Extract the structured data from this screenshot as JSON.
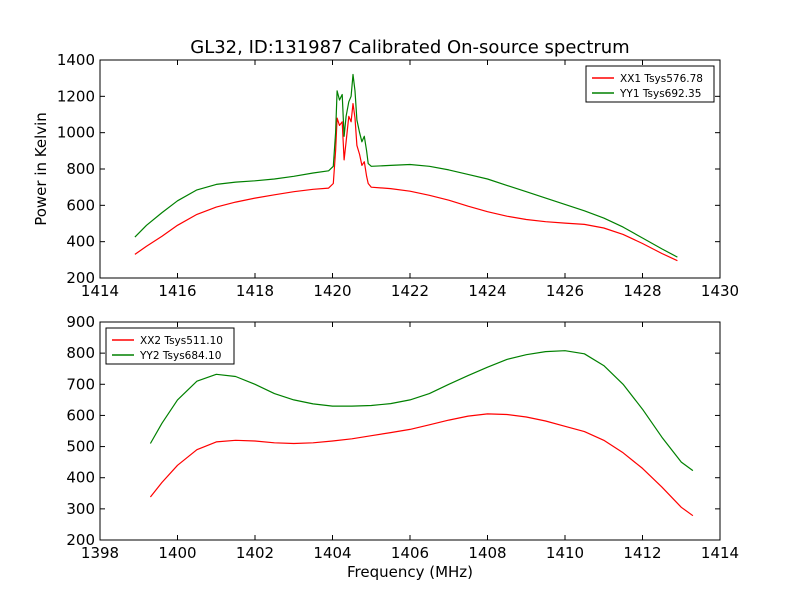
{
  "figure": {
    "title": "GL32, ID:131987 Calibrated On-source spectrum"
  },
  "colors": {
    "xx": "#ff0000",
    "yy": "#008000",
    "axes": "#000000",
    "background": "#ffffff"
  },
  "chart_data": [
    {
      "type": "line",
      "title": "GL32, ID:131987 Calibrated On-source spectrum",
      "xlabel": "",
      "ylabel": "Power in Kelvin",
      "xlim": [
        1414,
        1430
      ],
      "ylim": [
        200,
        1400
      ],
      "xticks": [
        "1414",
        "1416",
        "1418",
        "1420",
        "1422",
        "1424",
        "1426",
        "1428",
        "1430"
      ],
      "yticks": [
        "200",
        "400",
        "600",
        "800",
        "1000",
        "1200",
        "1400"
      ],
      "grid": false,
      "legend_position": "top-right",
      "series": [
        {
          "name": "XX1 Tsys576.78",
          "color": "#ff0000",
          "x": [
            1414.9,
            1415.2,
            1415.6,
            1416.0,
            1416.5,
            1417.0,
            1417.5,
            1418.0,
            1418.5,
            1419.0,
            1419.5,
            1419.9,
            1420.02,
            1420.08,
            1420.12,
            1420.18,
            1420.25,
            1420.3,
            1420.35,
            1420.42,
            1420.48,
            1420.53,
            1420.58,
            1420.63,
            1420.7,
            1420.76,
            1420.82,
            1420.88,
            1420.92,
            1421.0,
            1421.5,
            1422.0,
            1422.5,
            1423.0,
            1423.5,
            1424.0,
            1424.5,
            1425.0,
            1425.5,
            1426.0,
            1426.5,
            1427.0,
            1427.5,
            1428.0,
            1428.5,
            1428.9
          ],
          "y": [
            330,
            375,
            430,
            490,
            550,
            590,
            618,
            640,
            658,
            675,
            688,
            695,
            720,
            900,
            1080,
            1040,
            1060,
            850,
            950,
            1090,
            1060,
            1160,
            1080,
            930,
            880,
            820,
            840,
            760,
            720,
            700,
            692,
            678,
            655,
            628,
            595,
            565,
            540,
            522,
            510,
            502,
            495,
            475,
            440,
            390,
            335,
            295
          ]
        },
        {
          "name": "YY1 Tsys692.35",
          "color": "#008000",
          "x": [
            1414.9,
            1415.2,
            1415.6,
            1416.0,
            1416.5,
            1417.0,
            1417.5,
            1418.0,
            1418.5,
            1419.0,
            1419.5,
            1419.9,
            1420.02,
            1420.08,
            1420.12,
            1420.18,
            1420.25,
            1420.3,
            1420.35,
            1420.42,
            1420.48,
            1420.53,
            1420.58,
            1420.63,
            1420.7,
            1420.76,
            1420.82,
            1420.88,
            1420.92,
            1421.0,
            1421.5,
            1422.0,
            1422.5,
            1423.0,
            1423.5,
            1424.0,
            1424.5,
            1425.0,
            1425.5,
            1426.0,
            1426.5,
            1427.0,
            1427.5,
            1428.0,
            1428.5,
            1428.9
          ],
          "y": [
            425,
            490,
            560,
            625,
            685,
            715,
            728,
            735,
            745,
            760,
            778,
            790,
            815,
            1000,
            1230,
            1180,
            1210,
            980,
            1090,
            1170,
            1200,
            1320,
            1230,
            1070,
            1000,
            950,
            980,
            900,
            830,
            815,
            820,
            825,
            815,
            795,
            770,
            745,
            710,
            675,
            640,
            605,
            570,
            530,
            480,
            420,
            360,
            315
          ]
        }
      ]
    },
    {
      "type": "line",
      "title": "",
      "xlabel": "Frequency (MHz)",
      "ylabel": "",
      "xlim": [
        1398,
        1414
      ],
      "ylim": [
        200,
        900
      ],
      "xticks": [
        "1398",
        "1400",
        "1402",
        "1404",
        "1406",
        "1408",
        "1410",
        "1412",
        "1414"
      ],
      "yticks": [
        "200",
        "300",
        "400",
        "500",
        "600",
        "700",
        "800",
        "900"
      ],
      "grid": false,
      "legend_position": "top-left",
      "series": [
        {
          "name": "XX2 Tsys511.10",
          "color": "#ff0000",
          "x": [
            1399.3,
            1399.6,
            1400.0,
            1400.5,
            1401.0,
            1401.5,
            1402.0,
            1402.5,
            1403.0,
            1403.5,
            1404.0,
            1404.5,
            1405.0,
            1405.5,
            1406.0,
            1406.5,
            1407.0,
            1407.5,
            1408.0,
            1408.5,
            1409.0,
            1409.5,
            1410.0,
            1410.5,
            1411.0,
            1411.5,
            1412.0,
            1412.5,
            1413.0,
            1413.3
          ],
          "y": [
            338,
            385,
            440,
            490,
            515,
            520,
            518,
            512,
            510,
            512,
            518,
            525,
            535,
            545,
            555,
            570,
            585,
            598,
            605,
            603,
            595,
            582,
            565,
            548,
            520,
            480,
            430,
            370,
            305,
            278
          ]
        },
        {
          "name": "YY2 Tsys684.10",
          "color": "#008000",
          "x": [
            1399.3,
            1399.6,
            1400.0,
            1400.5,
            1401.0,
            1401.5,
            1402.0,
            1402.5,
            1403.0,
            1403.5,
            1404.0,
            1404.5,
            1405.0,
            1405.5,
            1406.0,
            1406.5,
            1407.0,
            1407.5,
            1408.0,
            1408.5,
            1409.0,
            1409.5,
            1410.0,
            1410.5,
            1411.0,
            1411.5,
            1412.0,
            1412.5,
            1413.0,
            1413.3
          ],
          "y": [
            510,
            575,
            650,
            710,
            732,
            725,
            700,
            670,
            650,
            637,
            630,
            630,
            632,
            638,
            650,
            670,
            700,
            728,
            755,
            780,
            795,
            805,
            808,
            798,
            760,
            700,
            620,
            530,
            450,
            423
          ]
        }
      ]
    }
  ]
}
